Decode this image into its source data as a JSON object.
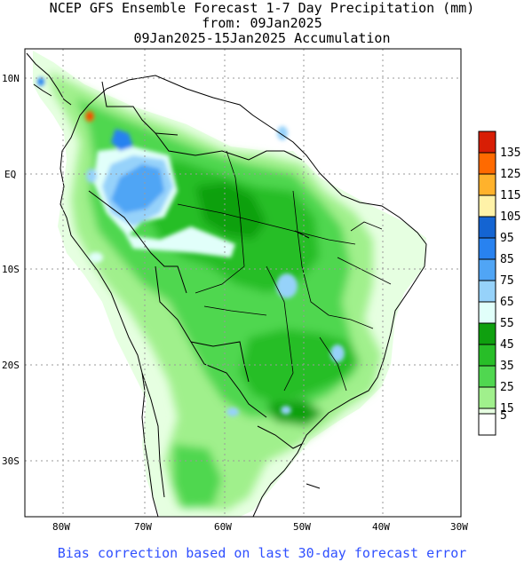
{
  "titles": {
    "line1": "NCEP GFS Ensemble Forecast 1-7 Day Precipitation (mm)",
    "line2": "from: 09Jan2025",
    "line3": "09Jan2025-15Jan2025 Accumulation"
  },
  "axes": {
    "lat_labels": [
      "10N",
      "EQ",
      "10S",
      "20S",
      "30S"
    ],
    "lon_labels": [
      "80W",
      "70W",
      "60W",
      "50W",
      "40W",
      "30W"
    ]
  },
  "legend": {
    "items": [
      {
        "label": "135",
        "color": "#d81e05"
      },
      {
        "label": "125",
        "color": "#ff6a00"
      },
      {
        "label": "115",
        "color": "#ffb22c"
      },
      {
        "label": "105",
        "color": "#fff2a8"
      },
      {
        "label": "95",
        "color": "#1464d2"
      },
      {
        "label": "85",
        "color": "#2882f0"
      },
      {
        "label": "75",
        "color": "#50a5f5"
      },
      {
        "label": "65",
        "color": "#96d2fa"
      },
      {
        "label": "55",
        "color": "#e1fffa"
      },
      {
        "label": "45",
        "color": "#0fa00f"
      },
      {
        "label": "35",
        "color": "#28be28"
      },
      {
        "label": "25",
        "color": "#50d750"
      },
      {
        "label": "15",
        "color": "#a0f08c"
      },
      {
        "label": "5",
        "color": "#e6ffe1"
      }
    ],
    "bottom_box_color": "#ffffff"
  },
  "footer": "Bias correction based on last 30-day forecast error"
}
